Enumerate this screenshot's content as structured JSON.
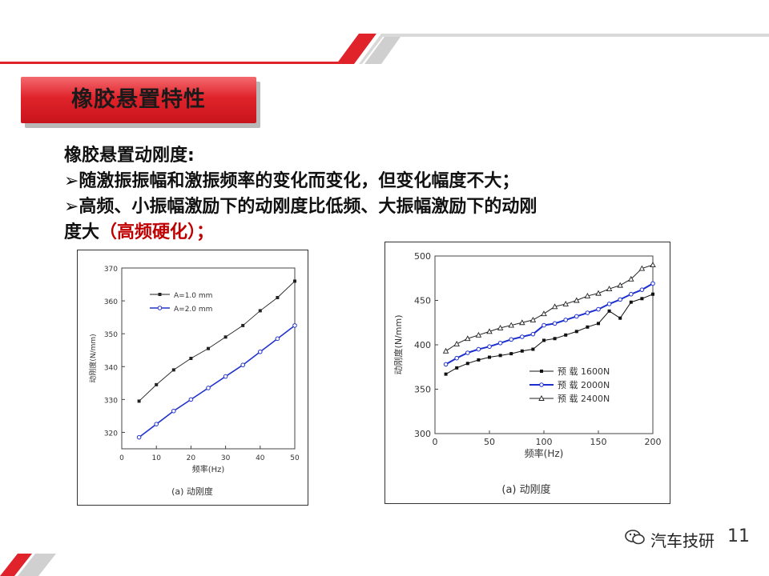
{
  "slide": {
    "title": "橡胶悬置特性",
    "heading": "橡胶悬置动刚度:",
    "bullet1": "➢随激振振幅和激振频率的变化而变化，但变化幅度不大；",
    "bullet2": "➢高频、小振幅激励下的动刚度比低频、大振幅激励下的动刚",
    "bullet3_start": "度大",
    "bullet3_highlight": "（高频硬化）；",
    "page_number": "11",
    "watermark": "汽车技研",
    "accent": "#e0232b"
  },
  "chart_data": [
    {
      "type": "line",
      "caption": "(a)  动刚度",
      "xlabel": "频率(Hz)",
      "ylabel": "动刚度(N/mm)",
      "xlim": [
        0,
        50
      ],
      "ylim": [
        315,
        370
      ],
      "xticks": [
        "0",
        "10",
        "20",
        "30",
        "40",
        "50"
      ],
      "yticks": [
        "320",
        "330",
        "340",
        "350",
        "360",
        "370"
      ],
      "legend_position": "top-left",
      "series": [
        {
          "name": "A=1.0 mm",
          "color": "#222222",
          "marker": "square",
          "x": [
            5,
            10,
            15,
            20,
            25,
            30,
            35,
            40,
            45,
            50
          ],
          "y": [
            329.5,
            334.5,
            339,
            342.5,
            345.5,
            349,
            352.5,
            357,
            361,
            366
          ]
        },
        {
          "name": "A=2.0 mm",
          "color": "#2233cc",
          "marker": "circle",
          "x": [
            5,
            10,
            15,
            20,
            25,
            30,
            35,
            40,
            45,
            50
          ],
          "y": [
            318.5,
            322.5,
            326.5,
            330,
            333.5,
            337,
            340.5,
            344.5,
            348.5,
            352.5
          ]
        }
      ]
    },
    {
      "type": "line",
      "caption": "(a)  动刚度",
      "xlabel": "频率(Hz)",
      "ylabel": "动刚度(N/mm)",
      "xlim": [
        0,
        200
      ],
      "ylim": [
        300,
        500
      ],
      "xticks": [
        "0",
        "50",
        "100",
        "150",
        "200"
      ],
      "yticks": [
        "300",
        "350",
        "400",
        "450",
        "500"
      ],
      "legend_position": "bottom-right",
      "series": [
        {
          "name": "预 载 1600N",
          "color": "#111111",
          "marker": "square",
          "x": [
            10,
            20,
            30,
            40,
            50,
            60,
            70,
            80,
            90,
            100,
            110,
            120,
            130,
            140,
            150,
            160,
            170,
            180,
            190,
            200
          ],
          "y": [
            367,
            374,
            379,
            383,
            386,
            388,
            390,
            393,
            395,
            405,
            407,
            411,
            415,
            420,
            424,
            438,
            430,
            448,
            452,
            457
          ]
        },
        {
          "name": "预 载 2000N",
          "color": "#1c2fd0",
          "marker": "circle",
          "x": [
            10,
            20,
            30,
            40,
            50,
            60,
            70,
            80,
            90,
            100,
            110,
            120,
            130,
            140,
            150,
            160,
            170,
            180,
            190,
            200
          ],
          "y": [
            378,
            385,
            391,
            395,
            398,
            402,
            406,
            409,
            412,
            422,
            424,
            428,
            432,
            436,
            440,
            446,
            451,
            457,
            462,
            469
          ]
        },
        {
          "name": "预 载 2400N",
          "color": "#222222",
          "marker": "triangle",
          "x": [
            10,
            20,
            30,
            40,
            50,
            60,
            70,
            80,
            90,
            100,
            110,
            120,
            130,
            140,
            150,
            160,
            170,
            180,
            190,
            200
          ],
          "y": [
            393,
            401,
            407,
            411,
            415,
            419,
            422,
            425,
            428,
            435,
            443,
            446,
            450,
            455,
            458,
            463,
            467,
            474,
            486,
            490
          ]
        }
      ]
    }
  ]
}
